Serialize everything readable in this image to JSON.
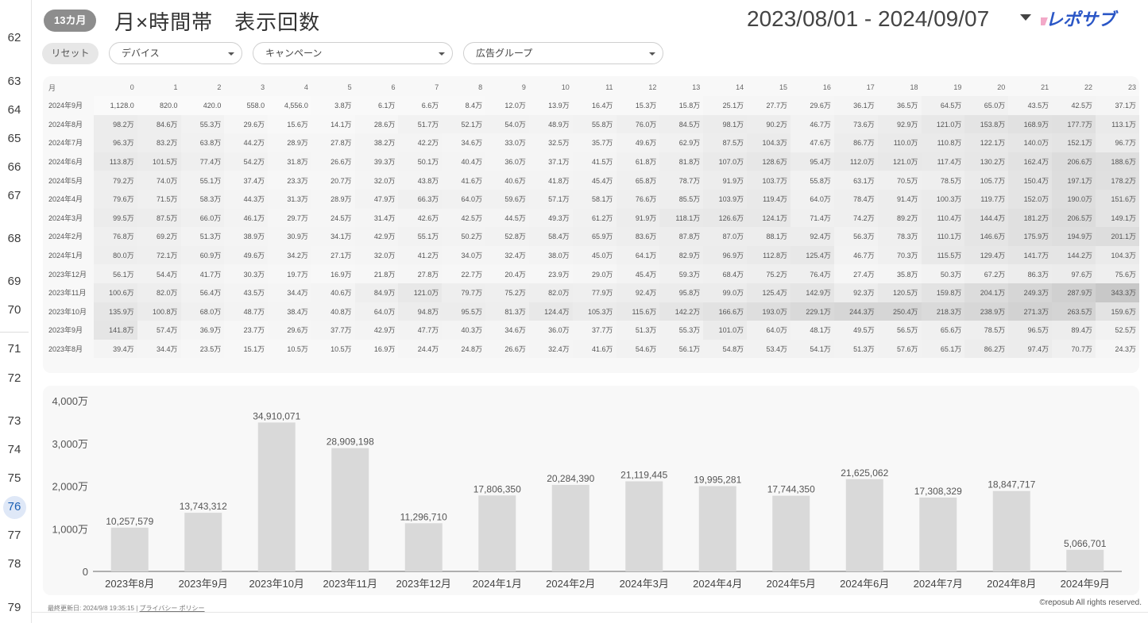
{
  "gutter": {
    "rows": [
      {
        "n": "62",
        "y": 48
      },
      {
        "n": "63",
        "y": 103
      },
      {
        "n": "64",
        "y": 139
      },
      {
        "n": "65",
        "y": 175
      },
      {
        "n": "66",
        "y": 211
      },
      {
        "n": "67",
        "y": 247
      },
      {
        "n": "68",
        "y": 301
      },
      {
        "n": "69",
        "y": 355
      },
      {
        "n": "70",
        "y": 391
      },
      {
        "n": "71",
        "y": 440
      },
      {
        "n": "72",
        "y": 477
      },
      {
        "n": "73",
        "y": 531
      },
      {
        "n": "74",
        "y": 567
      },
      {
        "n": "75",
        "y": 603
      },
      {
        "n": "76",
        "y": 639
      },
      {
        "n": "77",
        "y": 675
      },
      {
        "n": "78",
        "y": 711
      },
      {
        "n": "79",
        "y": 766
      }
    ],
    "selected": "76"
  },
  "header": {
    "badge": "13カ月",
    "title": "月×時間帯　表示回数",
    "date_range": "2023/08/01 - 2024/09/07",
    "logo_text": "レポサブ",
    "logo_color": "#2a56c6",
    "logo_accent": "#e94a8f"
  },
  "filters": {
    "reset_label": "リセット",
    "dropdowns": [
      {
        "label": "デバイス"
      },
      {
        "label": "キャンペーン"
      },
      {
        "label": "広告グループ"
      }
    ]
  },
  "heatmap": {
    "month_header": "月",
    "hours": [
      "0",
      "1",
      "2",
      "3",
      "4",
      "5",
      "6",
      "7",
      "8",
      "9",
      "10",
      "11",
      "12",
      "13",
      "14",
      "15",
      "16",
      "17",
      "18",
      "19",
      "20",
      "21",
      "22",
      "23"
    ],
    "rows": [
      {
        "month": "2024年9月",
        "cells": [
          "1,128.0",
          "820.0",
          "420.0",
          "558.0",
          "4,556.0",
          "3.8万",
          "6.1万",
          "6.6万",
          "8.4万",
          "12.0万",
          "13.9万",
          "16.4万",
          "15.3万",
          "15.8万",
          "25.1万",
          "27.7万",
          "29.6万",
          "36.1万",
          "36.5万",
          "64.5万",
          "65.0万",
          "43.5万",
          "42.5万",
          "37.1万"
        ]
      },
      {
        "month": "2024年8月",
        "cells": [
          "98.2万",
          "84.6万",
          "55.3万",
          "29.6万",
          "15.6万",
          "14.1万",
          "28.6万",
          "51.7万",
          "52.1万",
          "54.0万",
          "48.9万",
          "55.8万",
          "76.0万",
          "84.5万",
          "98.1万",
          "90.2万",
          "46.7万",
          "73.6万",
          "92.9万",
          "121.0万",
          "153.8万",
          "168.9万",
          "177.7万",
          "113.1万"
        ]
      },
      {
        "month": "2024年7月",
        "cells": [
          "96.3万",
          "83.2万",
          "63.8万",
          "44.2万",
          "28.9万",
          "27.8万",
          "38.2万",
          "42.2万",
          "34.6万",
          "33.0万",
          "32.5万",
          "35.7万",
          "49.6万",
          "62.9万",
          "87.5万",
          "104.3万",
          "47.6万",
          "86.7万",
          "110.0万",
          "110.8万",
          "122.1万",
          "140.0万",
          "152.1万",
          "96.7万"
        ]
      },
      {
        "month": "2024年6月",
        "cells": [
          "113.8万",
          "101.5万",
          "77.4万",
          "54.2万",
          "31.8万",
          "26.6万",
          "39.3万",
          "50.1万",
          "40.4万",
          "36.0万",
          "37.1万",
          "41.5万",
          "61.8万",
          "81.8万",
          "107.0万",
          "128.6万",
          "95.4万",
          "112.0万",
          "121.0万",
          "117.4万",
          "130.2万",
          "162.4万",
          "206.6万",
          "188.6万"
        ]
      },
      {
        "month": "2024年5月",
        "cells": [
          "79.2万",
          "74.0万",
          "55.1万",
          "37.4万",
          "23.3万",
          "20.7万",
          "32.0万",
          "43.8万",
          "41.6万",
          "40.6万",
          "41.8万",
          "45.4万",
          "65.8万",
          "78.7万",
          "91.9万",
          "103.7万",
          "55.8万",
          "63.1万",
          "70.5万",
          "78.5万",
          "105.7万",
          "150.4万",
          "197.1万",
          "178.2万"
        ]
      },
      {
        "month": "2024年4月",
        "cells": [
          "79.6万",
          "71.5万",
          "58.3万",
          "44.3万",
          "31.3万",
          "28.9万",
          "47.9万",
          "66.3万",
          "64.0万",
          "59.6万",
          "57.1万",
          "58.1万",
          "76.6万",
          "85.5万",
          "103.9万",
          "119.4万",
          "64.0万",
          "78.4万",
          "91.4万",
          "100.3万",
          "119.7万",
          "152.0万",
          "190.0万",
          "151.6万"
        ]
      },
      {
        "month": "2024年3月",
        "cells": [
          "99.5万",
          "87.5万",
          "66.0万",
          "46.1万",
          "29.7万",
          "24.5万",
          "31.4万",
          "42.6万",
          "42.5万",
          "44.5万",
          "49.3万",
          "61.2万",
          "91.9万",
          "118.1万",
          "126.6万",
          "124.1万",
          "71.4万",
          "74.2万",
          "89.2万",
          "110.4万",
          "144.4万",
          "181.2万",
          "206.5万",
          "149.1万"
        ]
      },
      {
        "month": "2024年2月",
        "cells": [
          "76.8万",
          "69.2万",
          "51.3万",
          "38.9万",
          "30.9万",
          "34.1万",
          "42.9万",
          "55.1万",
          "50.2万",
          "52.8万",
          "58.4万",
          "65.9万",
          "83.6万",
          "87.8万",
          "87.0万",
          "88.1万",
          "92.4万",
          "56.3万",
          "78.3万",
          "110.1万",
          "146.6万",
          "175.9万",
          "194.9万",
          "201.1万"
        ]
      },
      {
        "month": "2024年1月",
        "cells": [
          "80.0万",
          "72.1万",
          "60.9万",
          "49.6万",
          "34.2万",
          "27.1万",
          "32.0万",
          "41.2万",
          "34.0万",
          "32.4万",
          "38.0万",
          "45.0万",
          "64.1万",
          "82.9万",
          "96.9万",
          "112.8万",
          "125.4万",
          "46.7万",
          "70.3万",
          "115.5万",
          "129.4万",
          "141.7万",
          "144.2万",
          "104.3万"
        ]
      },
      {
        "month": "2023年12月",
        "cells": [
          "56.1万",
          "54.4万",
          "41.7万",
          "30.3万",
          "19.7万",
          "16.9万",
          "21.8万",
          "27.8万",
          "22.7万",
          "20.4万",
          "23.9万",
          "29.0万",
          "45.4万",
          "59.3万",
          "68.4万",
          "75.2万",
          "76.4万",
          "27.4万",
          "35.8万",
          "50.3万",
          "67.2万",
          "86.3万",
          "97.6万",
          "75.6万"
        ]
      },
      {
        "month": "2023年11月",
        "cells": [
          "100.6万",
          "82.0万",
          "56.4万",
          "43.5万",
          "34.4万",
          "40.6万",
          "84.9万",
          "121.0万",
          "79.7万",
          "75.2万",
          "82.0万",
          "77.9万",
          "92.4万",
          "95.8万",
          "99.0万",
          "125.4万",
          "142.9万",
          "92.3万",
          "120.5万",
          "159.8万",
          "204.1万",
          "249.3万",
          "287.9万",
          "343.3万"
        ]
      },
      {
        "month": "2023年10月",
        "cells": [
          "135.9万",
          "100.8万",
          "68.0万",
          "48.7万",
          "38.4万",
          "40.8万",
          "64.0万",
          "94.8万",
          "95.5万",
          "81.3万",
          "124.4万",
          "105.3万",
          "115.6万",
          "142.2万",
          "166.6万",
          "193.0万",
          "229.1万",
          "244.3万",
          "250.4万",
          "218.3万",
          "238.9万",
          "271.3万",
          "263.5万",
          "159.6万"
        ]
      },
      {
        "month": "2023年9月",
        "cells": [
          "141.8万",
          "57.4万",
          "36.9万",
          "23.7万",
          "29.6万",
          "37.7万",
          "42.9万",
          "47.7万",
          "40.3万",
          "34.6万",
          "36.0万",
          "37.7万",
          "51.3万",
          "55.3万",
          "101.0万",
          "64.0万",
          "48.1万",
          "49.5万",
          "56.5万",
          "65.6万",
          "78.5万",
          "96.5万",
          "89.4万",
          "52.5万"
        ]
      },
      {
        "month": "2023年8月",
        "cells": [
          "39.4万",
          "34.4万",
          "23.5万",
          "15.1万",
          "10.5万",
          "10.5万",
          "16.9万",
          "24.4万",
          "24.8万",
          "26.6万",
          "32.4万",
          "41.6万",
          "54.6万",
          "56.1万",
          "54.8万",
          "53.4万",
          "54.1万",
          "51.3万",
          "57.6万",
          "65.1万",
          "86.2万",
          "97.4万",
          "70.7万",
          "24.3万"
        ]
      }
    ]
  },
  "chart_data": {
    "type": "bar",
    "categories": [
      "2023年8月",
      "2023年9月",
      "2023年10月",
      "2023年11月",
      "2023年12月",
      "2024年1月",
      "2024年2月",
      "2024年3月",
      "2024年4月",
      "2024年5月",
      "2024年6月",
      "2024年7月",
      "2024年8月",
      "2024年9月"
    ],
    "values": [
      10257579,
      13743312,
      34910071,
      28909198,
      11296710,
      17806350,
      20284390,
      21119445,
      19995281,
      17744350,
      21625062,
      17308329,
      18847717,
      5066701
    ],
    "value_labels": [
      "10,257,579",
      "13,743,312",
      "34,910,071",
      "28,909,198",
      "11,296,710",
      "17,806,350",
      "20,284,390",
      "21,119,445",
      "19,995,281",
      "17,744,350",
      "21,625,062",
      "17,308,329",
      "18,847,717",
      "5,066,701"
    ],
    "yticks": [
      {
        "value": 0,
        "label": "0"
      },
      {
        "value": 10000000,
        "label": "1,000万"
      },
      {
        "value": 20000000,
        "label": "2,000万"
      },
      {
        "value": 30000000,
        "label": "3,000万"
      },
      {
        "value": 40000000,
        "label": "4,000万"
      }
    ],
    "ylim": [
      0,
      40000000
    ],
    "bar_color": "#d9d9d9",
    "grid": false
  },
  "footer": {
    "last_updated": "最終更新日: 2024/9/8 19:35:15",
    "separator": "|",
    "privacy_link": "プライバシー ポリシー",
    "copyright": "©reposub All rights reserved."
  }
}
